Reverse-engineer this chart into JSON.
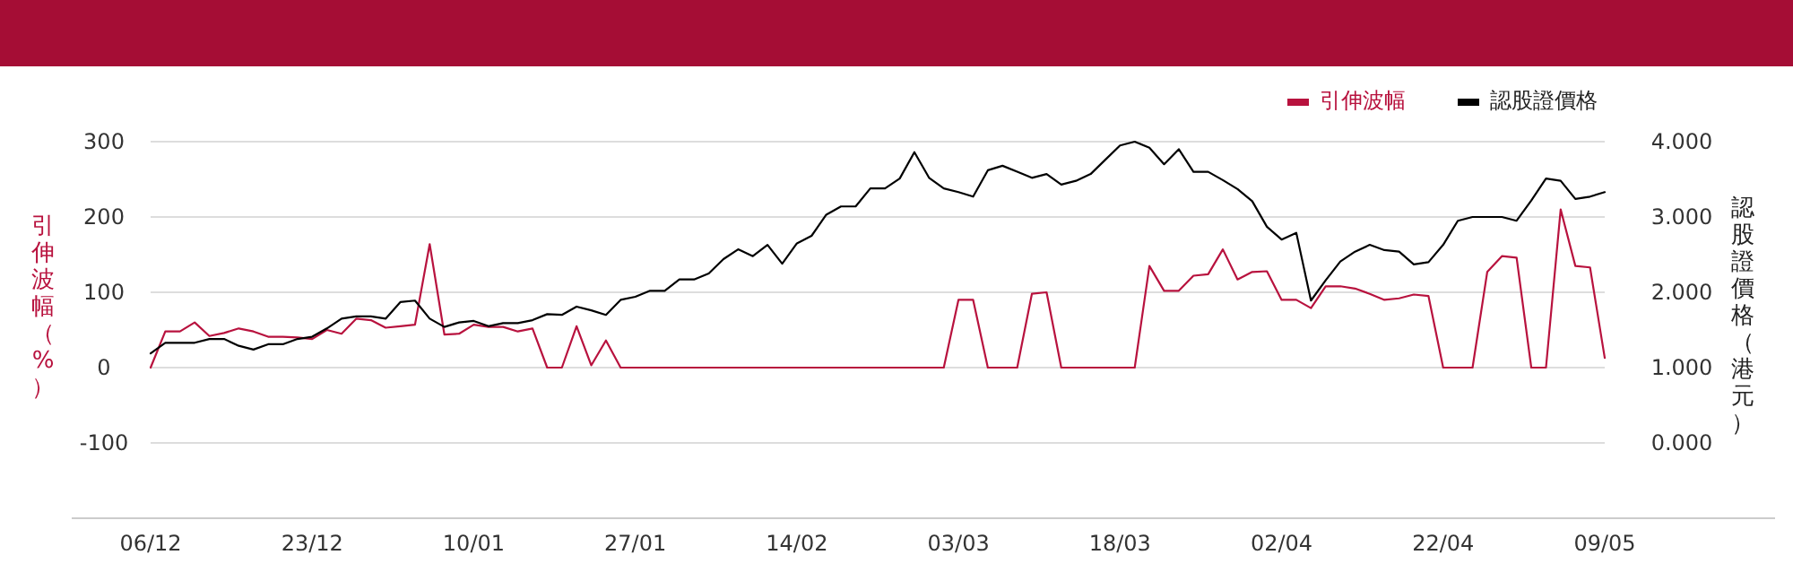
{
  "chart_data": {
    "type": "line",
    "categories": [
      "06/12",
      null,
      null,
      null,
      null,
      null,
      null,
      null,
      null,
      null,
      null,
      "23/12",
      null,
      null,
      null,
      null,
      null,
      null,
      null,
      null,
      null,
      null,
      "10/01",
      null,
      null,
      null,
      null,
      null,
      null,
      null,
      null,
      null,
      null,
      "27/01",
      null,
      null,
      null,
      null,
      null,
      null,
      null,
      null,
      null,
      null,
      "14/02",
      null,
      null,
      null,
      null,
      null,
      null,
      null,
      null,
      null,
      null,
      "03/03",
      null,
      null,
      null,
      null,
      null,
      null,
      null,
      null,
      null,
      null,
      "18/03",
      null,
      null,
      null,
      null,
      null,
      null,
      null,
      null,
      null,
      null,
      "02/04",
      null,
      null,
      null,
      null,
      null,
      null,
      null,
      null,
      null,
      null,
      "22/04",
      null,
      null,
      null,
      null,
      null,
      null,
      null,
      null,
      null,
      null,
      "09/05"
    ],
    "series": [
      {
        "name": "引伸波幅",
        "color": "#b8123e",
        "values": [
          0,
          48,
          48,
          60,
          42,
          46,
          52,
          48,
          41,
          41,
          40,
          38,
          50,
          45,
          65,
          63,
          53,
          55,
          57,
          164,
          44,
          45,
          57,
          54,
          54,
          48,
          52,
          0,
          0,
          55,
          3,
          36,
          0,
          0,
          0,
          0,
          0,
          0,
          0,
          0,
          0,
          0,
          0,
          0,
          0,
          0,
          0,
          0,
          0,
          0,
          0,
          0,
          0,
          0,
          0,
          90,
          90,
          0,
          0,
          0,
          98,
          100,
          0,
          0,
          0,
          0,
          0,
          0,
          135,
          102,
          102,
          122,
          124,
          157,
          117,
          127,
          128,
          90,
          90,
          79,
          108,
          108,
          105,
          98,
          90,
          92,
          97,
          95,
          0,
          0,
          0,
          127,
          148,
          146,
          0,
          0,
          210,
          135,
          133,
          13
        ]
      },
      {
        "name": "認股證價格",
        "color": "#000000",
        "axis": "y2",
        "values": [
          1.19,
          1.33,
          1.33,
          1.33,
          1.38,
          1.38,
          1.29,
          1.24,
          1.31,
          1.31,
          1.38,
          1.41,
          1.52,
          1.65,
          1.68,
          1.68,
          1.65,
          1.87,
          1.89,
          1.65,
          1.54,
          1.6,
          1.62,
          1.55,
          1.59,
          1.59,
          1.63,
          1.71,
          1.7,
          1.81,
          1.76,
          1.7,
          1.9,
          1.94,
          2.02,
          2.02,
          2.17,
          2.17,
          2.25,
          2.44,
          2.57,
          2.48,
          2.63,
          2.38,
          2.65,
          2.75,
          3.03,
          3.14,
          3.14,
          3.38,
          3.38,
          3.51,
          3.86,
          3.52,
          3.38,
          3.33,
          3.27,
          3.62,
          3.68,
          3.6,
          3.52,
          3.57,
          3.43,
          3.48,
          3.57,
          3.76,
          3.95,
          4.0,
          3.92,
          3.7,
          3.9,
          3.6,
          3.6,
          3.49,
          3.37,
          3.21,
          2.87,
          2.7,
          2.79,
          1.89,
          2.16,
          2.41,
          2.54,
          2.63,
          2.56,
          2.54,
          2.37,
          2.4,
          2.63,
          2.95,
          3.0,
          3.0,
          3.0,
          2.95,
          3.22,
          3.51,
          3.48,
          3.24,
          3.27,
          3.33
        ]
      }
    ],
    "ylabel": "引伸波幅（%）",
    "y2label": "認股證價格（港元）",
    "ylim": [
      -200,
      300
    ],
    "yticks": [
      -100,
      0,
      100,
      200,
      300
    ],
    "y2lim": [
      -1,
      4
    ],
    "y2ticks": [
      {
        "value": 0,
        "label": "0.000"
      },
      {
        "value": 1,
        "label": "1.000"
      },
      {
        "value": 2,
        "label": "2.000"
      },
      {
        "value": 3,
        "label": "3.000"
      },
      {
        "value": 4,
        "label": "4.000"
      }
    ],
    "grid": "y",
    "legend": "top right",
    "marker": "none",
    "line_style": "solid"
  }
}
